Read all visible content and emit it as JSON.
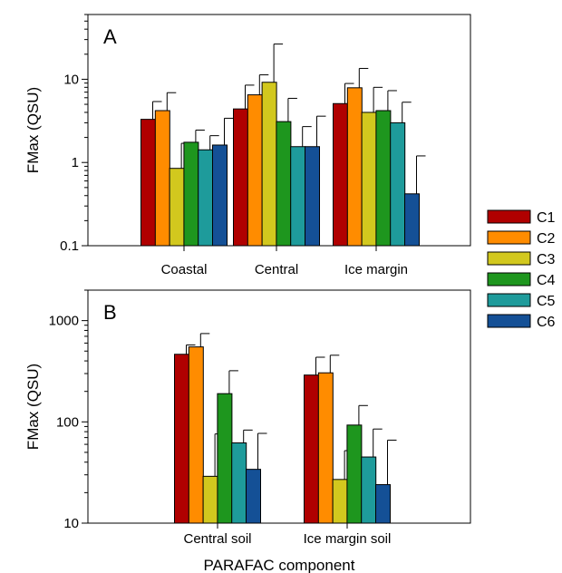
{
  "chart_data": [
    {
      "panel_label": "A",
      "type": "bar",
      "ylabel": "FMax (QSU)",
      "yscale": "log",
      "ylim": [
        0.1,
        60
      ],
      "yticks": [
        0.1,
        1,
        10
      ],
      "ytick_labels": [
        "0.1",
        "1",
        "10"
      ],
      "categories": [
        "Coastal",
        "Central",
        "Ice margin"
      ],
      "series": [
        {
          "name": "C1",
          "values": [
            3.3,
            4.4,
            5.1
          ],
          "errors": [
            5.4,
            8.5,
            8.9
          ]
        },
        {
          "name": "C2",
          "values": [
            4.2,
            6.5,
            7.9
          ],
          "errors": [
            6.9,
            11.3,
            13.5
          ]
        },
        {
          "name": "C3",
          "values": [
            0.85,
            9.2,
            4.0
          ],
          "errors": [
            1.7,
            26.5,
            8.0
          ]
        },
        {
          "name": "C4",
          "values": [
            1.75,
            3.1,
            4.2
          ],
          "errors": [
            2.45,
            5.9,
            7.3
          ]
        },
        {
          "name": "C5",
          "values": [
            1.42,
            1.55,
            3.0
          ],
          "errors": [
            2.1,
            2.7,
            5.3
          ]
        },
        {
          "name": "C6",
          "values": [
            1.62,
            1.55,
            0.42
          ],
          "errors": [
            3.4,
            3.6,
            1.2
          ]
        }
      ]
    },
    {
      "panel_label": "B",
      "type": "bar",
      "ylabel": "FMax (QSU)",
      "xlabel": "PARAFAC component",
      "yscale": "log",
      "ylim": [
        10,
        2000
      ],
      "yticks": [
        10,
        100,
        1000
      ],
      "ytick_labels": [
        "10",
        "100",
        "1000"
      ],
      "categories": [
        "Central soil",
        "Ice margin soil"
      ],
      "series": [
        {
          "name": "C1",
          "values": [
            465,
            290
          ],
          "errors": [
            575,
            435
          ]
        },
        {
          "name": "C2",
          "values": [
            550,
            305
          ],
          "errors": [
            745,
            455
          ]
        },
        {
          "name": "C3",
          "values": [
            29,
            27
          ],
          "errors": [
            76,
            52
          ]
        },
        {
          "name": "C4",
          "values": [
            190,
            93
          ],
          "errors": [
            320,
            145
          ]
        },
        {
          "name": "C5",
          "values": [
            62,
            45
          ],
          "errors": [
            83,
            85
          ]
        },
        {
          "name": "C6",
          "values": [
            34,
            24
          ],
          "errors": [
            77,
            66
          ]
        }
      ]
    }
  ],
  "legend": {
    "position": "right",
    "items": [
      {
        "label": "C1",
        "color": "#b00000"
      },
      {
        "label": "C2",
        "color": "#ff8c00"
      },
      {
        "label": "C3",
        "color": "#d2c81e"
      },
      {
        "label": "C4",
        "color": "#1e961e"
      },
      {
        "label": "C5",
        "color": "#1e9b9b"
      },
      {
        "label": "C6",
        "color": "#145096"
      }
    ]
  }
}
